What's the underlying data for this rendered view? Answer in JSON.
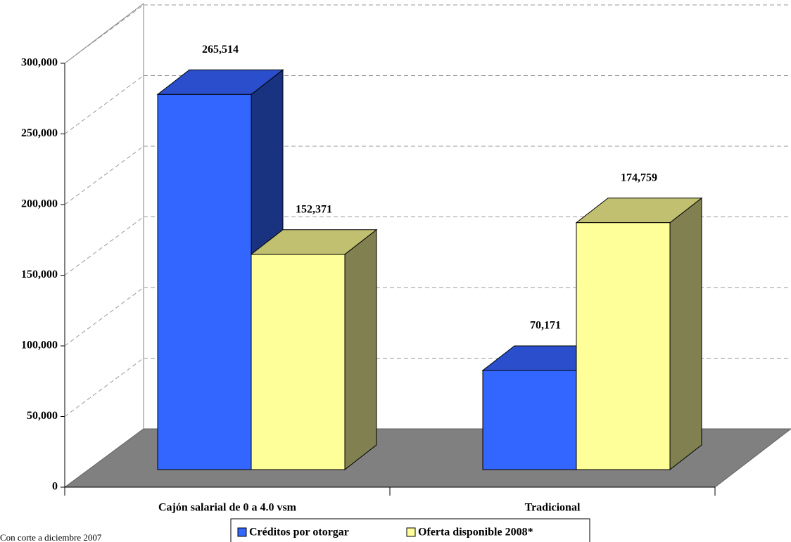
{
  "chart_data": {
    "type": "bar3d",
    "categories": [
      "Cajón salarial de 0 a 4.0 vsm",
      "Tradicional"
    ],
    "series": [
      {
        "name": "Créditos por otorgar",
        "color": "#3366ff",
        "values": [
          265514,
          70171
        ],
        "value_labels": [
          "265,514",
          "70,171"
        ]
      },
      {
        "name": "Oferta disponible 2008*",
        "color": "#ffff99",
        "values": [
          152371,
          174759
        ],
        "value_labels": [
          "152,371",
          "174,759"
        ]
      }
    ],
    "ylim": [
      0,
      300000
    ],
    "yticks": [
      0,
      {
        "value": 50000,
        "label": "50,000"
      },
      {
        "value": 100000,
        "label": "100,000"
      },
      {
        "value": 150000,
        "label": "150,000"
      },
      {
        "value": 200000,
        "label": "200,000"
      },
      {
        "value": 250000,
        "label": "250,000"
      },
      {
        "value": 300000,
        "label": "300,000"
      }
    ],
    "grid": true,
    "legend": "bottom",
    "footnote": "Con corte a diciembre 2007"
  }
}
